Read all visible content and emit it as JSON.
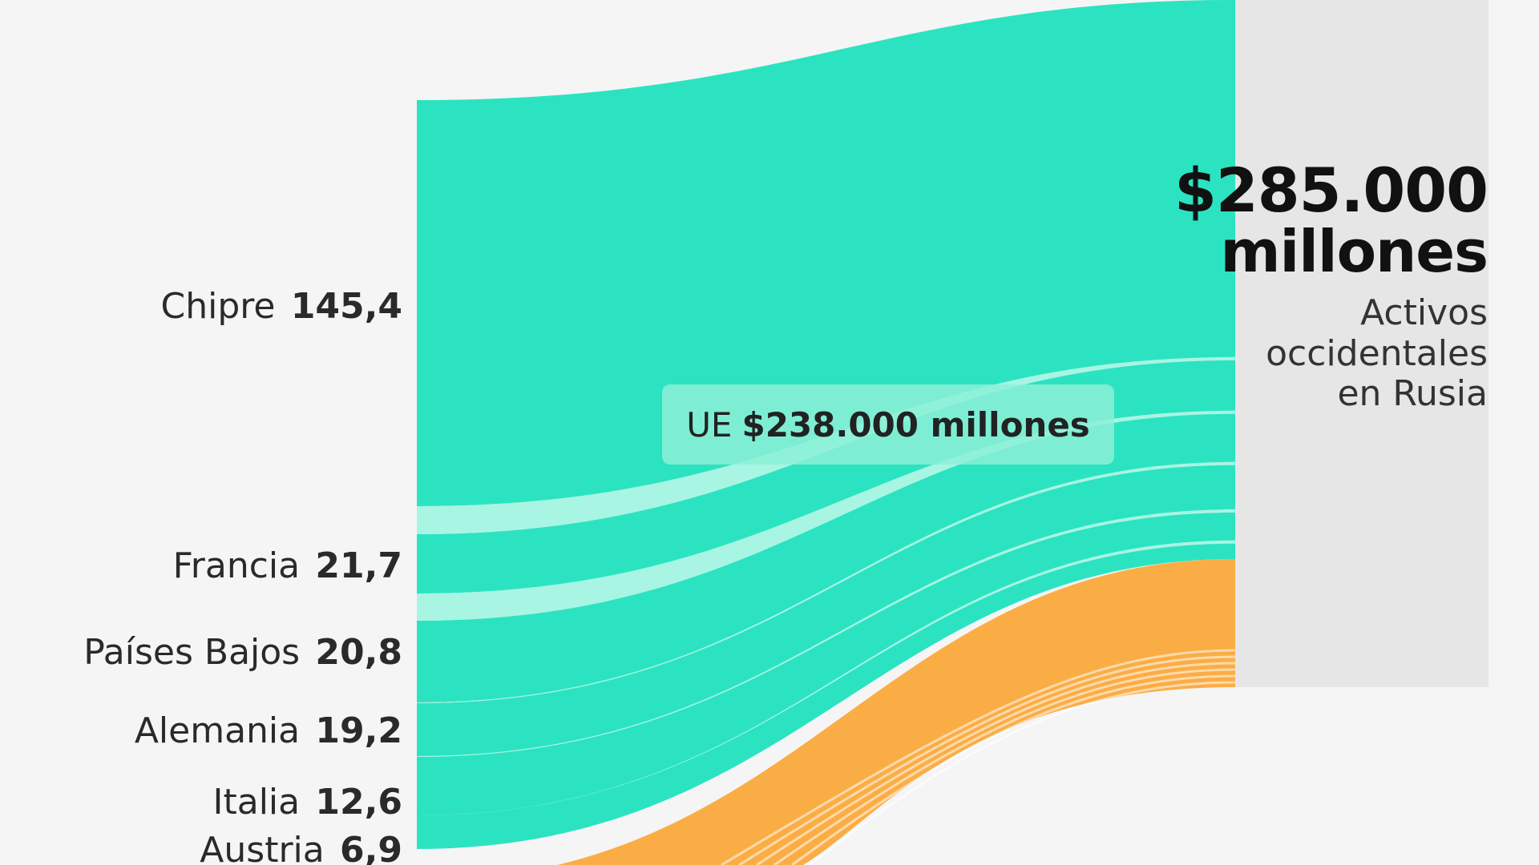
{
  "chart_data": {
    "type": "sankey",
    "unit": "",
    "sources": [
      {
        "name": "Chipre",
        "value": 145.4,
        "value_label": "145,4"
      },
      {
        "name": "Francia",
        "value": 21.7,
        "value_label": "21,7"
      },
      {
        "name": "Países Bajos",
        "value": 20.8,
        "value_label": "20,8"
      },
      {
        "name": "Alemania",
        "value": 19.2,
        "value_label": "19,2"
      },
      {
        "name": "Italia",
        "value": 12.6,
        "value_label": "12,6"
      },
      {
        "name": "Austria",
        "value": 6.9,
        "value_label": "6,9"
      }
    ],
    "group": {
      "prefix": "UE",
      "value_label": "$238.000 millones"
    },
    "target": {
      "amount": "$285.000",
      "unit": "millones",
      "label": "Activos occidentales en Rusia"
    },
    "colors": {
      "eu": "#2ce3c1",
      "eu_separator": "#a8f5e3",
      "non_eu": "#fbad45",
      "target_bar": "#e6e6e6",
      "background": "#f5f5f5"
    }
  }
}
